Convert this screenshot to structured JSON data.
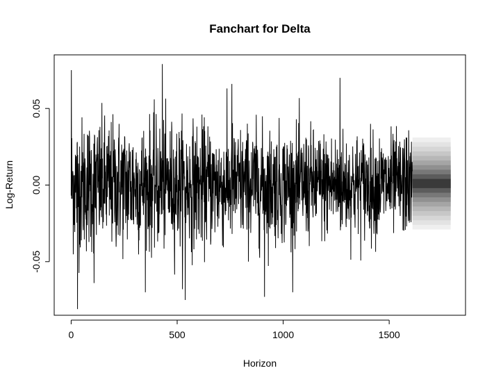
{
  "chart_data": {
    "type": "line",
    "title": "Fanchart for Delta",
    "xlabel": "Horizon",
    "ylabel": "Log-Return",
    "xlim": [
      -80,
      1860
    ],
    "ylim": [
      -0.085,
      0.085
    ],
    "x_ticks": [
      0,
      500,
      1000,
      1500
    ],
    "x_tick_labels": [
      "0",
      "500",
      "1000",
      "1500"
    ],
    "y_ticks": [
      -0.05,
      0.0,
      0.05
    ],
    "y_tick_labels": [
      "-0.05",
      "0.00",
      "0.05"
    ],
    "grid": false,
    "series": [
      {
        "n_points": 1610,
        "color": "#000000",
        "approx_std_early": 0.022,
        "approx_std_late": 0.016,
        "notable_points": [
          {
            "x": 1,
            "y": 0.075
          },
          {
            "x": 30,
            "y": -0.081
          },
          {
            "x": 108,
            "y": -0.064
          },
          {
            "x": 430,
            "y": 0.079
          },
          {
            "x": 538,
            "y": -0.075
          },
          {
            "x": 758,
            "y": 0.066
          },
          {
            "x": 912,
            "y": -0.073
          },
          {
            "x": 1268,
            "y": 0.07
          },
          {
            "x": 1580,
            "y": 0.031
          }
        ]
      }
    ],
    "fan": {
      "x_start": 1610,
      "x_end": 1790,
      "center": 0.001,
      "band_halfwidths": [
        0.03,
        0.027,
        0.024,
        0.021,
        0.018,
        0.015,
        0.012,
        0.009,
        0.006,
        0.003
      ],
      "band_colors": [
        "#efefef",
        "#e3e3e3",
        "#d6d6d6",
        "#c7c7c7",
        "#b7b7b7",
        "#a5a5a5",
        "#909090",
        "#787878",
        "#5c5c5c",
        "#3a3a3a"
      ]
    }
  }
}
